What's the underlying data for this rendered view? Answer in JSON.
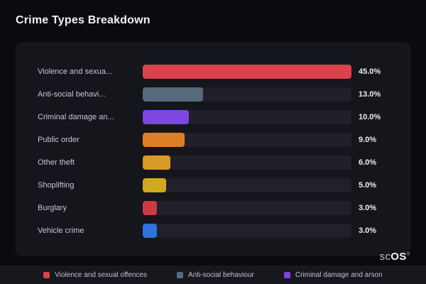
{
  "page": {
    "title": "Crime Types Breakdown"
  },
  "chart_data": {
    "type": "bar",
    "orientation": "horizontal",
    "title": "Crime Types Breakdown",
    "value_unit": "%",
    "max_value": 45,
    "grid": false,
    "legend_position": "bottom",
    "categories": [
      "Violence and sexual offences",
      "Anti-social behaviour",
      "Criminal damage and arson",
      "Public order",
      "Other theft",
      "Shoplifting",
      "Burglary",
      "Vehicle crime"
    ],
    "values": [
      45.0,
      13.0,
      10.0,
      9.0,
      6.0,
      5.0,
      3.0,
      3.0
    ],
    "rows": [
      {
        "display_label": "Violence and sexua...",
        "full_label": "Violence and sexual offences",
        "value": 45.0,
        "value_label": "45.0%",
        "color": "#d8434c"
      },
      {
        "display_label": "Anti-social behavi...",
        "full_label": "Anti-social behaviour",
        "value": 13.0,
        "value_label": "13.0%",
        "color": "#566a7c"
      },
      {
        "display_label": "Criminal damage an...",
        "full_label": "Criminal damage and arson",
        "value": 10.0,
        "value_label": "10.0%",
        "color": "#7d46e0"
      },
      {
        "display_label": "Public order",
        "full_label": "Public order",
        "value": 9.0,
        "value_label": "9.0%",
        "color": "#dd7f26"
      },
      {
        "display_label": "Other theft",
        "full_label": "Other theft",
        "value": 6.0,
        "value_label": "6.0%",
        "color": "#d99b26"
      },
      {
        "display_label": "Shoplifting",
        "full_label": "Shoplifting",
        "value": 5.0,
        "value_label": "5.0%",
        "color": "#d2a81f"
      },
      {
        "display_label": "Burglary",
        "full_label": "Burglary",
        "value": 3.0,
        "value_label": "3.0%",
        "color": "#cc3a42"
      },
      {
        "display_label": "Vehicle crime",
        "full_label": "Vehicle crime",
        "value": 3.0,
        "value_label": "3.0%",
        "color": "#2f72dd"
      }
    ]
  },
  "legend": {
    "items": [
      {
        "label": "Violence and sexual offences",
        "color": "#d8434c"
      },
      {
        "label": "Anti-social behaviour",
        "color": "#566a7c"
      },
      {
        "label": "Criminal damage and arson",
        "color": "#7d46e0"
      }
    ]
  },
  "branding": {
    "logo_prefix": "sc",
    "logo_suffix": "OS",
    "registered_mark": "®"
  }
}
